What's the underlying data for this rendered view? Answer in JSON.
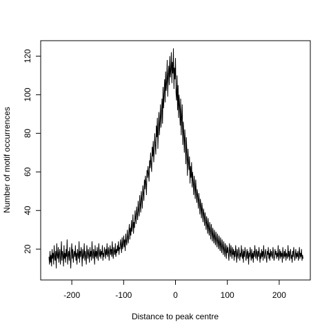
{
  "chart_data": {
    "type": "line",
    "title": "",
    "xlabel": "Distance to peak centre",
    "ylabel": "Number of motif occurrences",
    "xlim": [
      -260,
      260
    ],
    "ylim": [
      4,
      128
    ],
    "x_ticks": [
      -200,
      -100,
      0,
      100,
      200
    ],
    "y_ticks": [
      20,
      40,
      60,
      80,
      100,
      120
    ],
    "x_tick_labels": [
      "-200",
      "-100",
      "0",
      "100",
      "200"
    ],
    "y_tick_labels": [
      "20",
      "40",
      "60",
      "80",
      "100",
      "120"
    ],
    "grid": false,
    "legend": "none",
    "line_color": "#000000",
    "x_start": -244,
    "x_step": 1,
    "series": [
      {
        "values": [
          16,
          12,
          19,
          13,
          17,
          11,
          20,
          15,
          18,
          12,
          22,
          16,
          14,
          19,
          10,
          23,
          17,
          15,
          21,
          13,
          18,
          20,
          12,
          16,
          24,
          14,
          19,
          17,
          11,
          22,
          15,
          18,
          13,
          20,
          16,
          25,
          12,
          17,
          19,
          14,
          21,
          16,
          10,
          18,
          23,
          15,
          20,
          13,
          17,
          19,
          16,
          22,
          14,
          18,
          12,
          20,
          17,
          15,
          24,
          13,
          19,
          16,
          21,
          18,
          11,
          20,
          15,
          17,
          23,
          14,
          19,
          16,
          12,
          22,
          18,
          15,
          20,
          17,
          13,
          21,
          16,
          19,
          14,
          24,
          17,
          15,
          20,
          18,
          12,
          22,
          16,
          19,
          15,
          21,
          17,
          14,
          23,
          18,
          16,
          20,
          15,
          19,
          17,
          22,
          14,
          18,
          16,
          21,
          19,
          15,
          20,
          17,
          23,
          16,
          18,
          21,
          14,
          19,
          22,
          17,
          20,
          16,
          24,
          18,
          15,
          21,
          19,
          17,
          23,
          16,
          20,
          18,
          22,
          19,
          24,
          17,
          21,
          20,
          25,
          22,
          18,
          26,
          20,
          23,
          27,
          21,
          25,
          19,
          28,
          24,
          22,
          30,
          26,
          23,
          29,
          33,
          25,
          31,
          27,
          35,
          29,
          32,
          38,
          28,
          34,
          31,
          40,
          36,
          33,
          42,
          38,
          35,
          45,
          40,
          37,
          48,
          43,
          39,
          50,
          46,
          41,
          53,
          49,
          45,
          56,
          51,
          58,
          54,
          48,
          61,
          57,
          63,
          59,
          55,
          66,
          62,
          70,
          64,
          60,
          73,
          68,
          76,
          65,
          71,
          80,
          74,
          69,
          84,
          78,
          88,
          72,
          82,
          91,
          79,
          86,
          95,
          83,
          90,
          98,
          85,
          104,
          93,
          100,
          108,
          96,
          112,
          102,
          107,
          118,
          99,
          110,
          115,
          105,
          120,
          109,
          113,
          122,
          106,
          117,
          111,
          124,
          103,
          114,
          108,
          119,
          101,
          97,
          110,
          92,
          105,
          88,
          100,
          94,
          84,
          98,
          79,
          89,
          95,
          74,
          86,
          80,
          70,
          82,
          75,
          64,
          78,
          69,
          58,
          72,
          66,
          61,
          68,
          54,
          63,
          57,
          65,
          52,
          60,
          55,
          48,
          58,
          53,
          46,
          56,
          50,
          44,
          51,
          47,
          41,
          49,
          45,
          38,
          46,
          42,
          36,
          44,
          40,
          34,
          41,
          38,
          32,
          39,
          35,
          30,
          37,
          33,
          28,
          36,
          31,
          27,
          34,
          30,
          25,
          33,
          29,
          24,
          31,
          27,
          23,
          30,
          26,
          22,
          29,
          25,
          21,
          28,
          24,
          20,
          27,
          23,
          19,
          26,
          22,
          18,
          25,
          21,
          17,
          24,
          20,
          16,
          23,
          19,
          15,
          22,
          18,
          21,
          17,
          14,
          23,
          19,
          16,
          22,
          18,
          15,
          21,
          17,
          20,
          14,
          19,
          16,
          22,
          18,
          13,
          20,
          17,
          15,
          21,
          19,
          14,
          18,
          16,
          22,
          17,
          15,
          20,
          13,
          19,
          16,
          21,
          18,
          14,
          17,
          20,
          15,
          19,
          12,
          18,
          16,
          21,
          17,
          14,
          20,
          15,
          18,
          13,
          19,
          16,
          22,
          17,
          15,
          20,
          18,
          14,
          19,
          16,
          21,
          17,
          13,
          18,
          15,
          20,
          16,
          19,
          14,
          22,
          17,
          15,
          18,
          20,
          16,
          13,
          19,
          17,
          21,
          15,
          18,
          14,
          20,
          16,
          19,
          17,
          15,
          21,
          18,
          14,
          16,
          20,
          17,
          19,
          15,
          18,
          16,
          22,
          14,
          17,
          20,
          15,
          19,
          16,
          18,
          13,
          21,
          17,
          15,
          19,
          16,
          20,
          14,
          18,
          17,
          15,
          22,
          16,
          19,
          14,
          18,
          20,
          15,
          17,
          13,
          19,
          16,
          21,
          18,
          14,
          17,
          20,
          15,
          18,
          16,
          19,
          14,
          17,
          21,
          15,
          18,
          16,
          20,
          14,
          17,
          15
        ]
      }
    ]
  }
}
